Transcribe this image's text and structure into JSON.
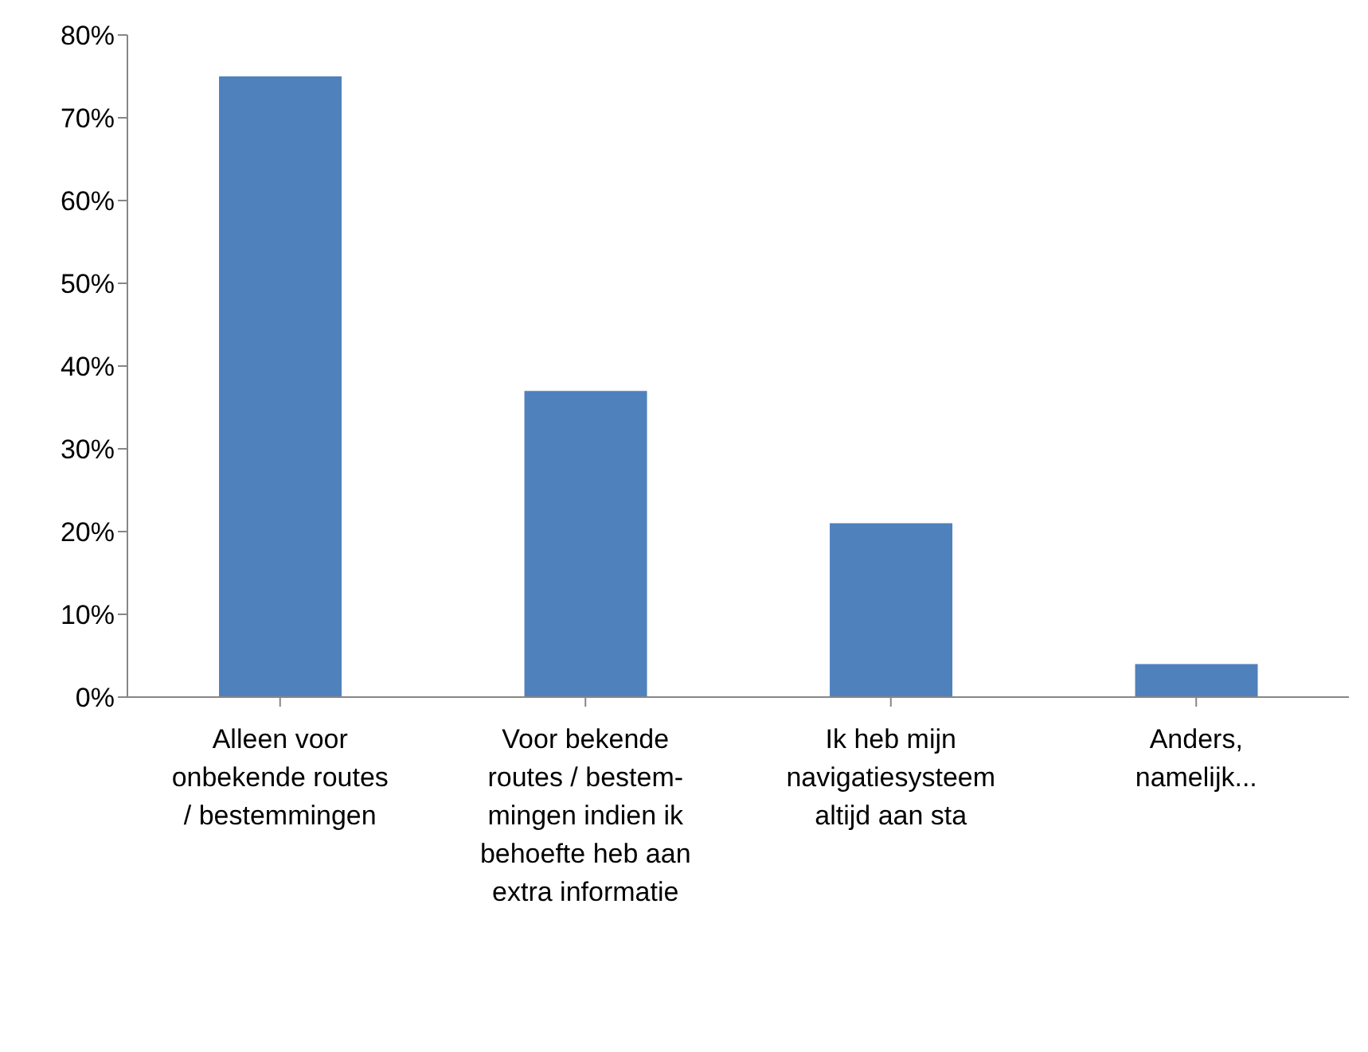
{
  "chart_data": {
    "type": "bar",
    "categories": [
      "Alleen voor onbekende routes / bestemmingen",
      "Voor bekende routes / bestem-mingen indien ik behoefte heb aan extra informatie",
      "Ik heb mijn navigatiesysteem altijd aan sta",
      "Anders, namelijk..."
    ],
    "values": [
      75,
      37,
      21,
      4
    ],
    "color": "#4f81bd",
    "ylim": [
      0,
      80
    ],
    "yticks": [
      {
        "value": 0,
        "label": "0%"
      },
      {
        "value": 10,
        "label": "10%"
      },
      {
        "value": 20,
        "label": "20%"
      },
      {
        "value": 30,
        "label": "30%"
      },
      {
        "value": 40,
        "label": "40%"
      },
      {
        "value": 50,
        "label": "50%"
      },
      {
        "value": 60,
        "label": "60%"
      },
      {
        "value": 70,
        "label": "70%"
      },
      {
        "value": 80,
        "label": "80%"
      }
    ],
    "grid": false,
    "legend": false
  }
}
